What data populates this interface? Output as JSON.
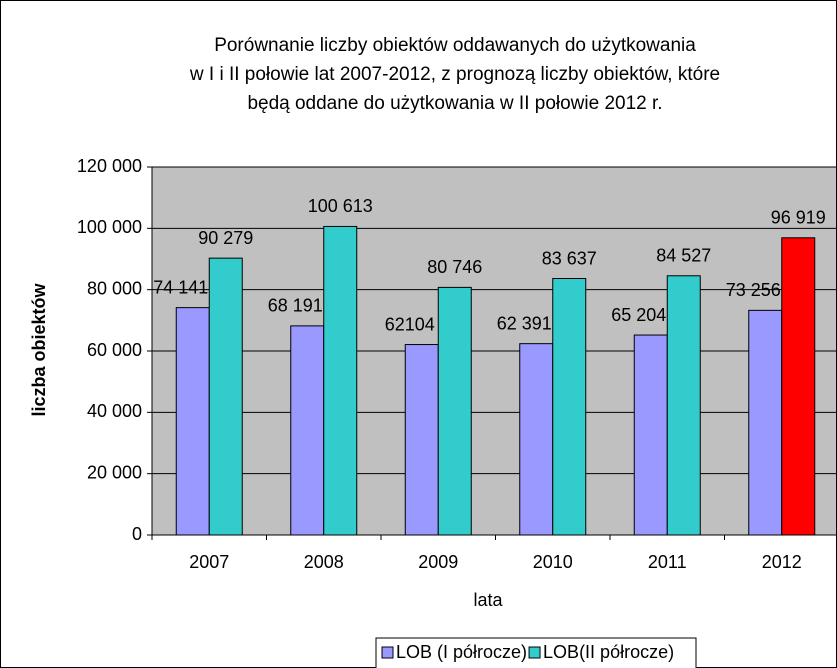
{
  "chart_data": {
    "type": "bar",
    "title": [
      "Porównanie liczby obiektów oddawanych do użytkowania",
      "w I i II połowie lat 2007-2012,  z prognozą liczby obiektów, które",
      "będą oddane do użytkowania w II połowie 2012 r."
    ],
    "xlabel": "lata",
    "ylabel": "liczba obiektów",
    "categories": [
      "2007",
      "2008",
      "2009",
      "2010",
      "2011",
      "2012"
    ],
    "series": [
      {
        "name": "LOB (I półrocze)",
        "color": "#9999ff",
        "values": [
          74141,
          68191,
          62104,
          62391,
          65204,
          73256
        ],
        "value_labels": [
          "74 141",
          "68 191",
          "62104",
          "62 391",
          "65 204",
          "73 256"
        ]
      },
      {
        "name": "LOB(II półrocze)",
        "color": "#33cccc",
        "colors": [
          "#33cccc",
          "#33cccc",
          "#33cccc",
          "#33cccc",
          "#33cccc",
          "#ff0000"
        ],
        "values": [
          90279,
          100613,
          80746,
          83637,
          84527,
          96919
        ],
        "value_labels": [
          "90 279",
          "100 613",
          "80 746",
          "83 637",
          "84 527",
          "96 919"
        ]
      }
    ],
    "ylim": [
      0,
      120000
    ],
    "yticks": [
      0,
      {
        "value": 20000,
        "label": "20 000"
      },
      {
        "value": 40000,
        "label": "40 000"
      },
      {
        "value": 60000,
        "label": "60 000"
      },
      {
        "value": 80000,
        "label": "80 000"
      },
      {
        "value": 100000,
        "label": "100 000"
      },
      {
        "value": 120000,
        "label": "120 000"
      }
    ],
    "grid": true,
    "plot_background": "#c0c0c0",
    "legend": "bottom"
  }
}
